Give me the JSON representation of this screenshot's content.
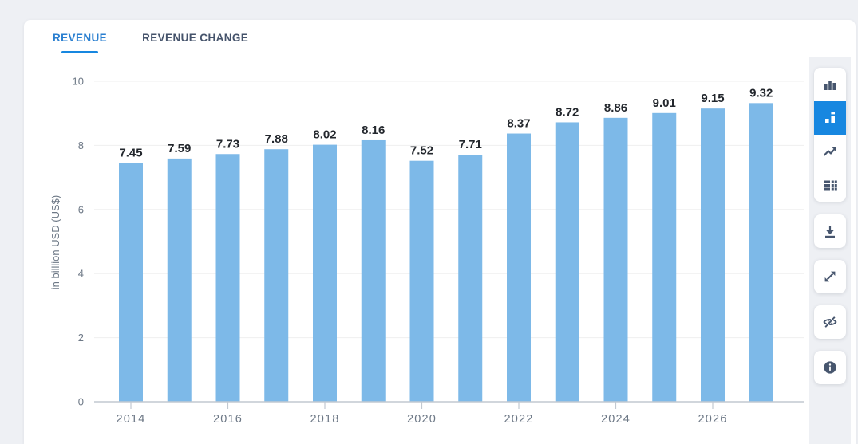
{
  "page": {
    "background_color": "#eef0f4",
    "card_color": "#ffffff"
  },
  "tabs": [
    {
      "label": "REVENUE",
      "active": true
    },
    {
      "label": "REVENUE CHANGE",
      "active": false
    }
  ],
  "chart_data": {
    "type": "bar",
    "title": "",
    "xlabel": "",
    "ylabel": "in billlion USD (US$)",
    "categories": [
      "2014",
      "2015",
      "2016",
      "2017",
      "2018",
      "2019",
      "2020",
      "2021",
      "2022",
      "2023",
      "2024",
      "2025",
      "2026",
      "2027"
    ],
    "values": [
      7.45,
      7.59,
      7.73,
      7.88,
      8.02,
      8.16,
      7.52,
      7.71,
      8.37,
      8.72,
      8.86,
      9.01,
      9.15,
      9.32
    ],
    "ylim": [
      0,
      10
    ],
    "yticks": [
      0,
      2,
      4,
      6,
      8,
      10
    ],
    "xtick_labels": [
      "2014",
      "2016",
      "2018",
      "2020",
      "2022",
      "2024",
      "2026"
    ],
    "xtick_every": 2,
    "grid": true,
    "legend": "none",
    "bar_color": "#7db9e8",
    "value_label_color": "#23272d",
    "axis_label_color": "#6d7886",
    "gridline_color": "#efefef",
    "baseline_color": "#c2c9d1"
  },
  "toolbar": {
    "chart_type_buttons": [
      {
        "name": "column-chart",
        "active": false
      },
      {
        "name": "bar-chart-values",
        "active": true
      },
      {
        "name": "line-chart",
        "active": false
      },
      {
        "name": "table-view",
        "active": false
      }
    ],
    "action_buttons": [
      {
        "name": "download"
      },
      {
        "name": "fullscreen"
      },
      {
        "name": "hide-values"
      },
      {
        "name": "info"
      }
    ],
    "active_color": "#1787e0",
    "icon_color": "#47566e"
  },
  "colors": {
    "active_tab": "#2a7fd0",
    "tab_underline": "#1787e0",
    "inactive_tab": "#45536b"
  }
}
